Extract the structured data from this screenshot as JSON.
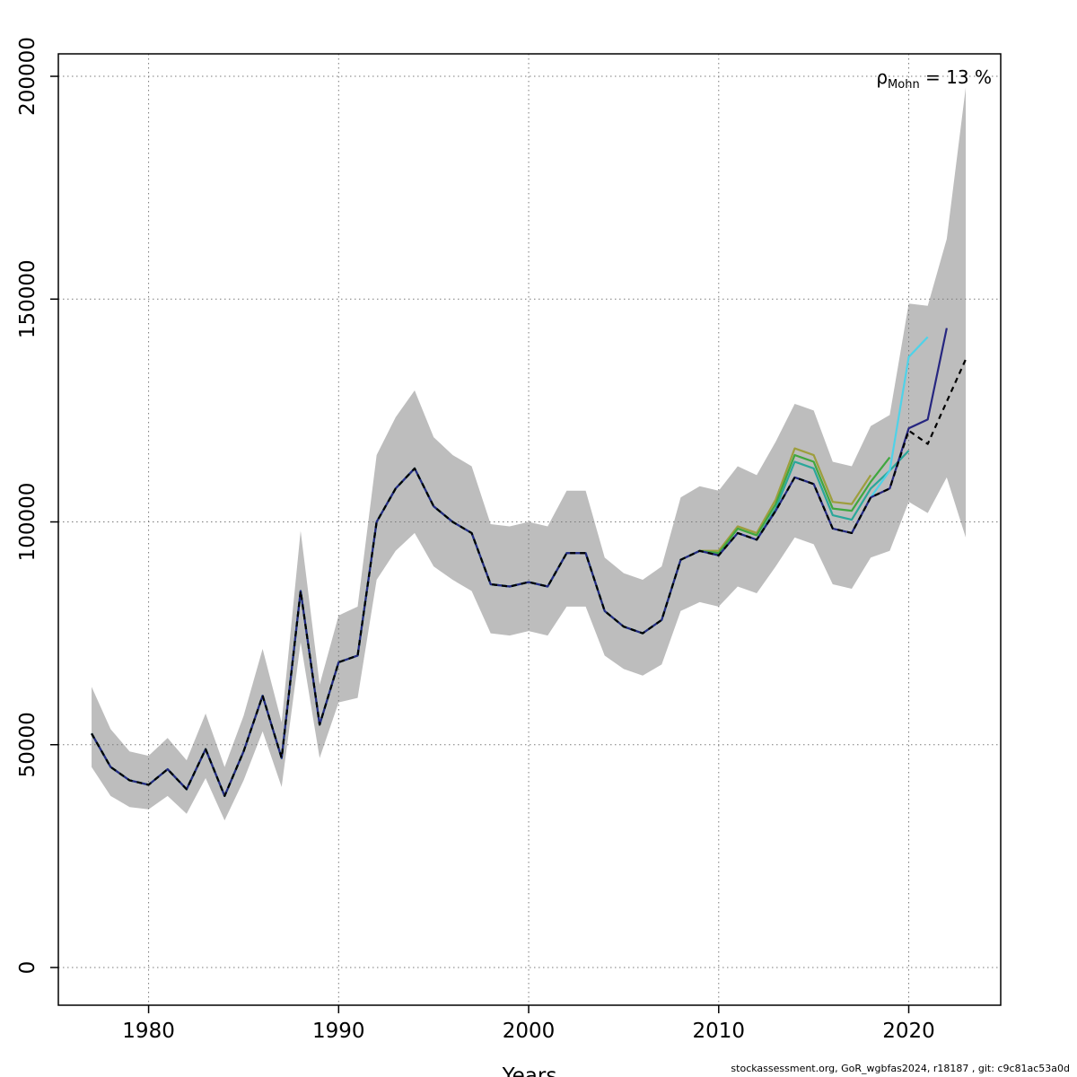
{
  "footer": "stockassessment.org, GoR_wgbfas2024, r18187 , git: c9c81ac53a0d",
  "chart_data": {
    "type": "line",
    "title": "",
    "xlabel": "Years",
    "ylabel": "",
    "annotation": {
      "symbol": "ρ",
      "subscript": "Mohn",
      "text": " = 13 %"
    },
    "grid": true,
    "grid_color": "#7a7a7a",
    "legend_position": "none",
    "xlim": [
      1975.25,
      2024.84
    ],
    "ylim": [
      -8460,
      205040
    ],
    "x_ticks": [
      1980,
      1990,
      2000,
      2010,
      2020
    ],
    "y_ticks": [
      0,
      50000,
      100000,
      150000,
      200000
    ],
    "start_year": 1977,
    "band": {
      "name": "confidence-band",
      "color": "#bdbdbd",
      "lower": [
        45000,
        38500,
        36000,
        35500,
        38500,
        34500,
        42500,
        33000,
        42000,
        53000,
        40500,
        73000,
        47000,
        59500,
        60500,
        87000,
        93500,
        97500,
        90000,
        87000,
        84500,
        75000,
        74500,
        75500,
        74500,
        81000,
        81000,
        70000,
        67000,
        65500,
        68000,
        80000,
        82000,
        81000,
        85500,
        84000,
        90000,
        96500,
        95000,
        86000,
        85000,
        92000,
        93500,
        104500,
        102000,
        110000,
        96500
      ],
      "upper": [
        63000,
        53500,
        48500,
        47500,
        51500,
        46500,
        57000,
        45000,
        56500,
        71500,
        55000,
        98000,
        63500,
        79000,
        81000,
        115000,
        123500,
        129500,
        119000,
        115000,
        112500,
        99500,
        99000,
        100000,
        99000,
        107000,
        107000,
        92000,
        88500,
        87000,
        90000,
        105500,
        108000,
        107000,
        112500,
        110500,
        118000,
        126500,
        125000,
        113500,
        112500,
        121500,
        124000,
        149000,
        148500,
        163500,
        197500
      ]
    },
    "series": [
      {
        "name": "retro-peel-2018",
        "color": "#9e9e3d",
        "dashed": false,
        "end_year": 2018,
        "values": [
          52500,
          45000,
          42000,
          41000,
          44500,
          40000,
          49000,
          38500,
          48500,
          61000,
          47000,
          84500,
          54500,
          68500,
          70000,
          100000,
          107500,
          112000,
          103500,
          100000,
          97500,
          86000,
          85500,
          86500,
          85500,
          93000,
          93000,
          80000,
          76500,
          75000,
          78000,
          91500,
          93500,
          93500,
          99000,
          97500,
          105000,
          116500,
          115000,
          104500,
          104000,
          110500
        ]
      },
      {
        "name": "retro-peel-2019",
        "color": "#3fa73f",
        "dashed": false,
        "end_year": 2019,
        "values": [
          52500,
          45000,
          42000,
          41000,
          44500,
          40000,
          49000,
          38500,
          48500,
          61000,
          47000,
          84500,
          54500,
          68500,
          70000,
          100000,
          107500,
          112000,
          103500,
          100000,
          97500,
          86000,
          85500,
          86500,
          85500,
          93000,
          93000,
          80000,
          76500,
          75000,
          78000,
          91500,
          93500,
          93000,
          98500,
          97000,
          104000,
          115000,
          113500,
          103000,
          102500,
          109000,
          114500
        ]
      },
      {
        "name": "retro-peel-2020",
        "color": "#2aa79a",
        "dashed": false,
        "end_year": 2020,
        "values": [
          52500,
          45000,
          42000,
          41000,
          44500,
          40000,
          49000,
          38500,
          48500,
          61000,
          47000,
          84500,
          54500,
          68500,
          70000,
          100000,
          107500,
          112000,
          103500,
          100000,
          97500,
          86000,
          85500,
          86500,
          85500,
          93000,
          93000,
          80000,
          76500,
          75000,
          78000,
          91500,
          93500,
          92500,
          97500,
          96000,
          103000,
          113500,
          112000,
          101500,
          100500,
          107500,
          111500,
          116000
        ]
      },
      {
        "name": "retro-peel-2021",
        "color": "#4fd2e8",
        "dashed": false,
        "end_year": 2021,
        "values": [
          52500,
          45000,
          42000,
          41000,
          44500,
          40000,
          49000,
          38500,
          48500,
          61000,
          47000,
          84500,
          54500,
          68500,
          70000,
          100000,
          107500,
          112000,
          103500,
          100000,
          97500,
          86000,
          85500,
          86500,
          85500,
          93000,
          93000,
          80000,
          76500,
          75000,
          78000,
          91500,
          93500,
          92500,
          97500,
          96000,
          102500,
          110000,
          108500,
          98500,
          97500,
          105500,
          111500,
          137000,
          141500
        ]
      },
      {
        "name": "retro-peel-2022",
        "color": "#262680",
        "dashed": false,
        "end_year": 2022,
        "values": [
          52500,
          45000,
          42000,
          41000,
          44500,
          40000,
          49000,
          38500,
          48500,
          61000,
          47000,
          84500,
          54500,
          68500,
          70000,
          100000,
          107500,
          112000,
          103500,
          100000,
          97500,
          86000,
          85500,
          86500,
          85500,
          93000,
          93000,
          80000,
          76500,
          75000,
          78000,
          91500,
          93500,
          92500,
          97500,
          96000,
          102500,
          110000,
          108500,
          98500,
          97500,
          105500,
          107500,
          121000,
          123000,
          143500
        ]
      },
      {
        "name": "final-run-2023",
        "color": "#000000",
        "dashed": true,
        "end_year": 2023,
        "values": [
          52500,
          45000,
          42000,
          41000,
          44500,
          40000,
          49000,
          38500,
          48500,
          61000,
          47000,
          84500,
          54500,
          68500,
          70000,
          100000,
          107500,
          112000,
          103500,
          100000,
          97500,
          86000,
          85500,
          86500,
          85500,
          93000,
          93000,
          80000,
          76500,
          75000,
          78000,
          91500,
          93500,
          92500,
          97500,
          96000,
          102500,
          110000,
          108500,
          98500,
          97500,
          105500,
          107500,
          120500,
          117500,
          127000,
          136500
        ]
      }
    ]
  }
}
